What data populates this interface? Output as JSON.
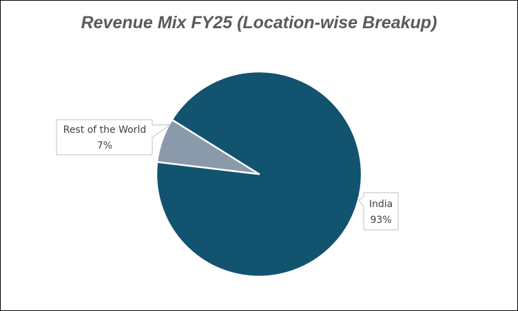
{
  "chart_data": {
    "type": "pie",
    "title": "Revenue Mix FY25 (Location-wise Breakup)",
    "slices": [
      {
        "label": "India",
        "value": 93,
        "value_label": "93%",
        "color": "#12536f"
      },
      {
        "label": "Rest of the World",
        "value": 7,
        "value_label": "7%",
        "color": "#8a9aaa"
      }
    ],
    "legend": "none",
    "data_labels": "callout"
  }
}
